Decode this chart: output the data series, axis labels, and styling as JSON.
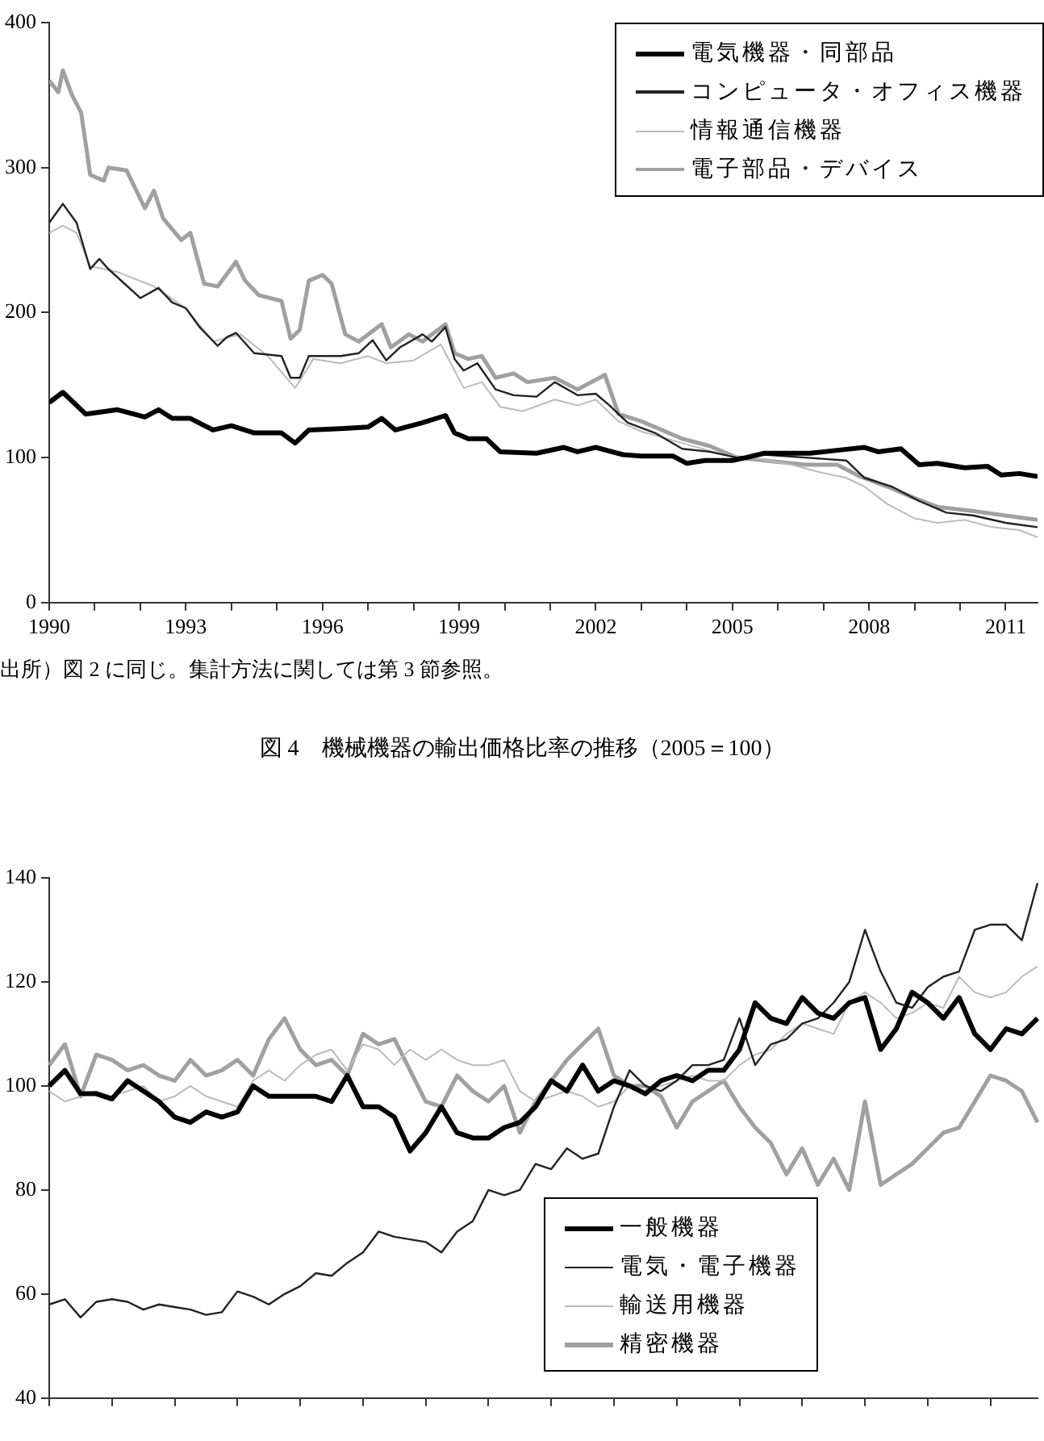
{
  "chart_data": [
    {
      "type": "line",
      "xlim": [
        1990,
        2011.7
      ],
      "ylim": [
        0,
        400
      ],
      "yticks": [
        0,
        100,
        200,
        300,
        400
      ],
      "xticks": [
        1990,
        {
          "value": 1991,
          "label": null
        },
        {
          "value": 1992,
          "label": null
        },
        1993,
        {
          "value": 1994,
          "label": null
        },
        {
          "value": 1995,
          "label": null
        },
        1996,
        {
          "value": 1997,
          "label": null
        },
        {
          "value": 1998,
          "label": null
        },
        1999,
        {
          "value": 2000,
          "label": null
        },
        {
          "value": 2001,
          "label": null
        },
        2002,
        {
          "value": 2003,
          "label": null
        },
        {
          "value": 2004,
          "label": null
        },
        2005,
        {
          "value": 2006,
          "label": null
        },
        {
          "value": 2007,
          "label": null
        },
        2008,
        {
          "value": 2009,
          "label": null
        },
        {
          "value": 2010,
          "label": null
        },
        2011
      ],
      "legend": "top right",
      "marker": "none",
      "line_style": "solid",
      "annotations": [
        "出所）図 2 に同じ。集計方法に関しては第 3 節参照。"
      ],
      "series": [
        {
          "name": "電気機器・同部品",
          "color": "#000000",
          "x": [
            1990,
            1990.3,
            1990.8,
            1991.5,
            1992.1,
            1992.4,
            1992.7,
            1993.1,
            1993.6,
            1994,
            1994.5,
            1995.1,
            1995.4,
            1995.7,
            1996.4,
            1997,
            1997.3,
            1997.6,
            1998.2,
            1998.7,
            1998.9,
            1999.2,
            1999.6,
            1999.9,
            2000.7,
            2001.3,
            2001.6,
            2002,
            2002.6,
            2003,
            2003.7,
            2004,
            2004.4,
            2005,
            2005.3,
            2005.7,
            2006.7,
            2007.3,
            2007.9,
            2008.2,
            2008.7,
            2009.1,
            2009.5,
            2010.1,
            2010.6,
            2010.9,
            2011.3,
            2011.7
          ],
          "values": [
            138,
            145,
            130,
            133,
            128,
            133,
            127,
            127,
            119,
            122,
            117,
            117,
            110,
            119,
            120,
            121,
            127,
            119,
            124,
            129,
            117,
            113,
            113,
            104,
            103,
            107,
            104,
            107,
            102,
            101,
            101,
            96,
            98,
            98,
            100,
            103,
            103,
            105,
            107,
            104,
            106,
            95,
            96,
            93,
            94,
            88,
            89,
            87
          ]
        },
        {
          "name": "コンピュータ・オフィス機器",
          "color": "#222222",
          "x": [
            1990,
            1990.3,
            1990.6,
            1990.9,
            1991.1,
            1991.3,
            1992,
            1992.4,
            1992.7,
            1993,
            1993.3,
            1993.7,
            1993.9,
            1994.1,
            1994.5,
            1995.1,
            1995.3,
            1995.5,
            1995.7,
            1996.4,
            1996.8,
            1997.1,
            1997.4,
            1997.7,
            1998.2,
            1998.4,
            1998.7,
            1998.9,
            1999.1,
            1999.4,
            1999.8,
            2000.2,
            2000.7,
            2001.1,
            2001.6,
            2002,
            2002.3,
            2002.7,
            2003.3,
            2003.9,
            2004.5,
            2005.1,
            2005.7,
            2006.6,
            2007.5,
            2007.9,
            2008.5,
            2009.1,
            2009.7,
            2010.3,
            2011,
            2011.7
          ],
          "values": [
            262,
            275,
            262,
            230,
            237,
            230,
            210,
            217,
            207,
            203,
            190,
            177,
            183,
            186,
            172,
            170,
            155,
            155,
            170,
            170,
            172,
            181,
            167,
            176,
            185,
            180,
            190,
            168,
            160,
            165,
            147,
            143,
            142,
            152,
            143,
            144,
            136,
            124,
            117,
            106,
            104,
            100,
            102,
            100,
            98,
            86,
            80,
            70,
            62,
            60,
            55,
            52
          ]
        },
        {
          "name": "情報通信機器",
          "color": "#bbbbbb",
          "x": [
            1990,
            1990.3,
            1990.6,
            1990.9,
            1991.5,
            1992.3,
            1993,
            1993.6,
            1994.2,
            1994.8,
            1995.4,
            1995.8,
            1996.4,
            1997,
            1997.4,
            1998,
            1998.6,
            1998.9,
            1999.1,
            1999.5,
            1999.9,
            2000.4,
            2001.1,
            2001.6,
            2002,
            2002.5,
            2003,
            2003.9,
            2004.8,
            2005.4,
            2006.3,
            2006.9,
            2007.5,
            2007.9,
            2008.4,
            2009,
            2009.5,
            2010.1,
            2010.7,
            2011.3,
            2011.7
          ],
          "values": [
            255,
            260,
            255,
            232,
            228,
            218,
            203,
            180,
            185,
            170,
            148,
            168,
            165,
            170,
            165,
            167,
            178,
            160,
            148,
            152,
            135,
            132,
            140,
            136,
            140,
            125,
            118,
            110,
            102,
            100,
            95,
            90,
            86,
            80,
            68,
            58,
            55,
            57,
            52,
            50,
            45
          ]
        },
        {
          "name": "電子部品・デバイス",
          "color": "#a0a0a0",
          "x": [
            1990,
            1990.2,
            1990.3,
            1990.5,
            1990.7,
            1990.9,
            1991.2,
            1991.3,
            1991.7,
            1992.1,
            1992.3,
            1992.5,
            1992.9,
            1993.1,
            1993.4,
            1993.7,
            1994.1,
            1994.3,
            1994.6,
            1995.1,
            1995.3,
            1995.5,
            1995.7,
            1996,
            1996.2,
            1996.5,
            1996.8,
            1997.3,
            1997.5,
            1997.9,
            1998.2,
            1998.7,
            1998.9,
            1999.2,
            1999.5,
            1999.8,
            2000.2,
            2000.5,
            2001.1,
            2001.6,
            2002.2,
            2002.5,
            2003,
            2003.9,
            2004.5,
            2005.1,
            2005.7,
            2006.6,
            2007.3,
            2007.8,
            2008.4,
            2009,
            2009.5,
            2010.3,
            2011,
            2011.7
          ],
          "values": [
            360,
            352,
            367,
            350,
            338,
            295,
            291,
            300,
            298,
            272,
            284,
            265,
            250,
            255,
            220,
            218,
            235,
            222,
            212,
            208,
            182,
            188,
            222,
            226,
            220,
            185,
            180,
            192,
            176,
            185,
            180,
            192,
            172,
            168,
            170,
            155,
            158,
            152,
            155,
            147,
            157,
            130,
            125,
            113,
            108,
            100,
            98,
            95,
            95,
            87,
            80,
            72,
            66,
            63,
            60,
            57
          ]
        }
      ]
    },
    {
      "type": "line",
      "title": "図 4　機械機器の輸出価格比率の推移（2005＝100）",
      "ylim": [
        40,
        140
      ],
      "yticks": [
        40,
        60,
        80,
        100,
        120,
        140
      ],
      "tick_labels": "y",
      "legend": "bottom",
      "marker": "none",
      "line_style": "solid",
      "categories": [
        null,
        null,
        null,
        null,
        null,
        null,
        null,
        null,
        null,
        null,
        null,
        null,
        null,
        null,
        null,
        null,
        null,
        null,
        null,
        null,
        null,
        null,
        null,
        null,
        null,
        null,
        null,
        null,
        null,
        null,
        null,
        null,
        null,
        null,
        null,
        null,
        null,
        null,
        null,
        null,
        null,
        null,
        null,
        null,
        null,
        null,
        null,
        null,
        null,
        null,
        null,
        null,
        null,
        null,
        null,
        null,
        null,
        null,
        null,
        null,
        null,
        null,
        null,
        null
      ],
      "series": [
        {
          "name": "一般機器",
          "color": "#000000",
          "values": [
            100,
            103,
            98.5,
            98.5,
            97.5,
            101,
            99,
            97,
            94,
            93,
            95,
            94,
            95,
            100,
            98,
            98,
            98,
            98,
            97,
            102,
            96,
            96,
            94,
            87.5,
            91,
            96,
            91,
            90,
            90,
            92,
            93,
            96,
            101,
            99,
            104,
            99,
            101,
            100,
            98.5,
            101,
            102,
            101,
            103,
            103,
            107,
            116,
            113,
            112,
            117,
            114,
            113,
            116,
            117,
            107,
            111,
            118,
            116,
            113,
            117,
            110,
            107,
            111,
            110,
            113
          ]
        },
        {
          "name": "電気・電子機器",
          "color": "#222222",
          "values": [
            58,
            59,
            55.5,
            58.5,
            59,
            58.5,
            57,
            58,
            57.5,
            57,
            56,
            56.5,
            60.5,
            59.5,
            58,
            60,
            61.5,
            64,
            63.5,
            66,
            68,
            72,
            71,
            70.5,
            70,
            68,
            72,
            74,
            80,
            79,
            80,
            85,
            84,
            88,
            86,
            87,
            96,
            103,
            100,
            99,
            101,
            104,
            104,
            105,
            113,
            104,
            108,
            109,
            112,
            113,
            116,
            120,
            130,
            122,
            116,
            115,
            119,
            121,
            122,
            130,
            131,
            131,
            128,
            139
          ]
        },
        {
          "name": "輸送用機器",
          "color": "#bbbbbb",
          "values": [
            99,
            97,
            98,
            99,
            98,
            99,
            100,
            97,
            98,
            100,
            98,
            97,
            96,
            101,
            103,
            101,
            104,
            106,
            107,
            103,
            108,
            107,
            104,
            107,
            105,
            107,
            105,
            104,
            104,
            105,
            99,
            97,
            98,
            99,
            98,
            96,
            97,
            100,
            99,
            100,
            101,
            102,
            101,
            101,
            104,
            106,
            107,
            110,
            112,
            111,
            110,
            116,
            118,
            116,
            113,
            114,
            116,
            115,
            121,
            118,
            117,
            118,
            121,
            123
          ]
        },
        {
          "name": "精密機器",
          "color": "#a0a0a0",
          "values": [
            104,
            108,
            98,
            106,
            105,
            103,
            104,
            102,
            101,
            105,
            102,
            103,
            105,
            102,
            109,
            113,
            107,
            104,
            105,
            102,
            110,
            108,
            109,
            103,
            97,
            96,
            102,
            99,
            97,
            100,
            91,
            97,
            101,
            105,
            108,
            111,
            102,
            100,
            100,
            98,
            92,
            97,
            99,
            101,
            96,
            92,
            89,
            83,
            88,
            81,
            86,
            80,
            97,
            81,
            83,
            85,
            88,
            91,
            92,
            97,
            102,
            101,
            99,
            93
          ]
        }
      ]
    }
  ]
}
